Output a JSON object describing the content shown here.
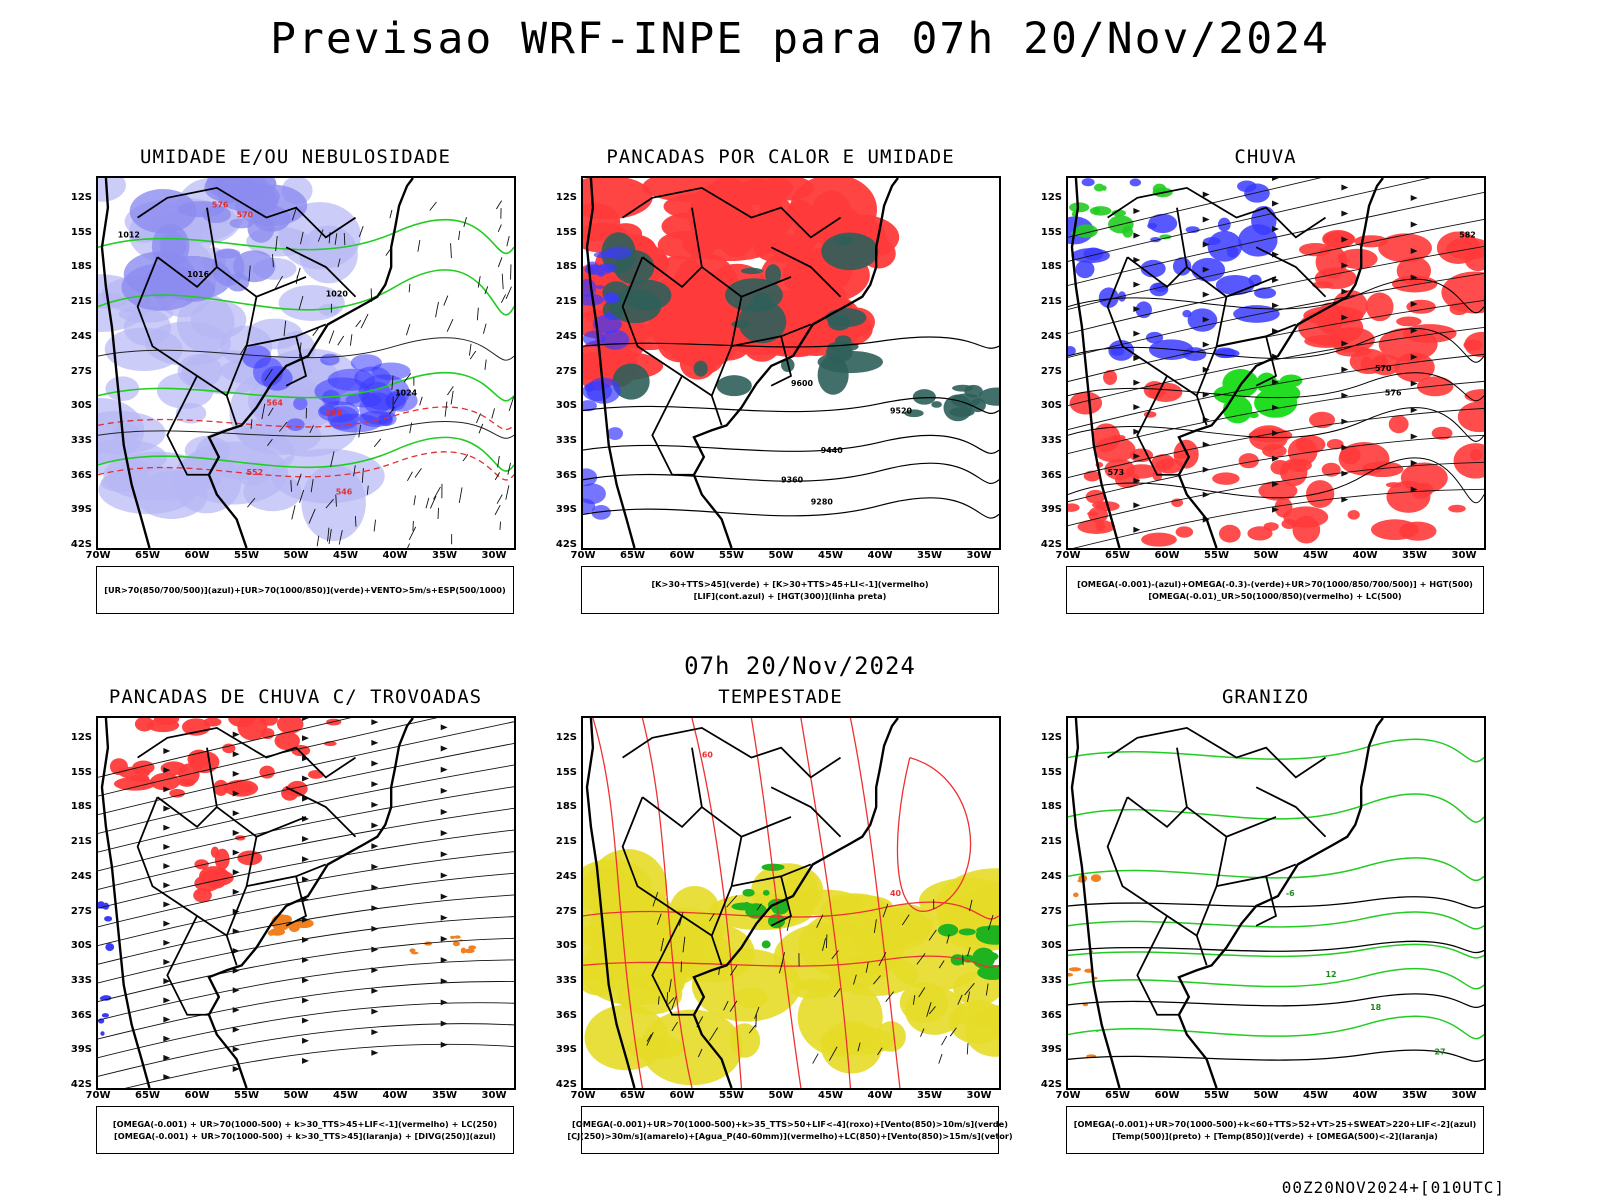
{
  "title": "Previsao WRF-INPE  para 07h 20/Nov/2024",
  "mid_title": "07h 20/Nov/2024",
  "footer": "00Z20NOV2024+[010UTC]",
  "lat_labels": [
    "12S",
    "15S",
    "18S",
    "21S",
    "24S",
    "27S",
    "30S",
    "33S",
    "36S",
    "39S",
    "42S"
  ],
  "lon_labels": [
    "70W",
    "65W",
    "60W",
    "55W",
    "50W",
    "45W",
    "40W",
    "35W",
    "30W"
  ],
  "colors": {
    "blue": "#3b3bff",
    "light_blue": "#b7b7f5",
    "green": "#22cc22",
    "red": "#ff3a3a",
    "dark_teal": "#2f5f5a",
    "orange": "#f08020",
    "yellow": "#e6dc28",
    "dark_red": "#ee3030"
  },
  "panels": [
    {
      "title": "UMIDADE E/OU NEBULOSIDADE",
      "legend": [
        "[UR>70(850/700/500)](azul)+[UR>70(1000/850)](verde)+VENTO>5m/s+ESP(500/1000)"
      ],
      "labels": [
        "1012",
        "1016",
        "1020",
        "1024",
        "576",
        "570",
        "564",
        "558",
        "552",
        "546"
      ]
    },
    {
      "title": "PANCADAS POR CALOR E UMIDADE",
      "legend": [
        "[K>30+TTS>45](verde) + [K>30+TTS>45+LI<-1](vermelho)",
        "[LIF](cont.azul) + [HGT(300)](linha preta)"
      ],
      "labels": [
        "9600",
        "9520",
        "9440",
        "9360",
        "9280"
      ]
    },
    {
      "title": "CHUVA",
      "legend": [
        "[OMEGA(-0.001)-(azul)+OMEGA(-0.3)-(verde)+UR>70(1000/850/700/500)] + HGT(500)",
        "[OMEGA(-0.01)_UR>50(1000/850)(vermelho) + LC(500)"
      ],
      "labels": [
        "582",
        "576",
        "570",
        "573"
      ]
    },
    {
      "title": "PANCADAS DE CHUVA C/ TROVOADAS",
      "legend": [
        "[OMEGA(-0.001) + UR>70(1000-500) + k>30_TTS>45+LIF<-1](vermelho) + LC(250)",
        "[OMEGA(-0.001) + UR>70(1000-500) + k>30_TTS>45](laranja) + [DIVG(250)](azul)"
      ],
      "labels": []
    },
    {
      "title": "TEMPESTADE",
      "legend": [
        "[OMEGA(-0.001)+UR>70(1000-500)+k>35_TTS>50+LIF<-4](roxo)+[Vento(850)>10m/s](verde)",
        "[CJ(250)>30m/s](amarelo)+[Agua_P(40-60mm)](vermelho)+LC(850)+[Vento(850)>15m/s](vetor)"
      ],
      "labels": [
        "40",
        "60"
      ]
    },
    {
      "title": "GRANIZO",
      "legend": [
        "[OMEGA(-0.001)+UR>70(1000-500)+k<60+TTS>52+VT>25+SWEAT>220+LIF<-2](azul)",
        "[Temp(500)](preto) + [Temp(850)](verde) + [OMEGA(500)<-2](laranja)"
      ],
      "labels": [
        "12",
        "18",
        "27",
        "-6"
      ]
    }
  ]
}
